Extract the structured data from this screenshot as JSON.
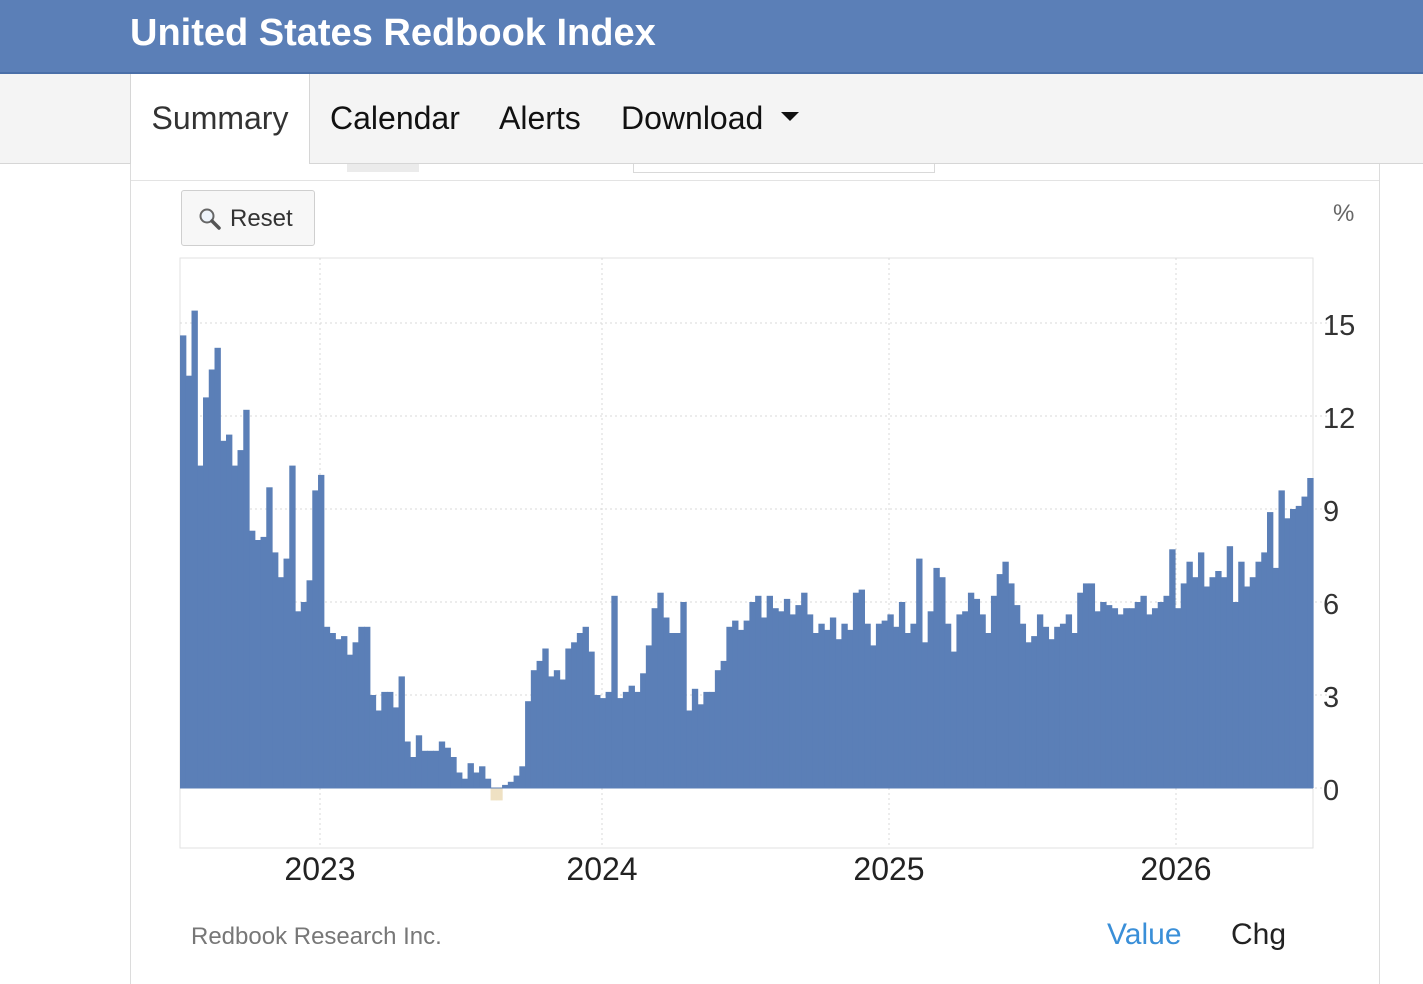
{
  "header": {
    "title": "United States Redbook Index"
  },
  "tabs": [
    {
      "label": "Summary",
      "active": true
    },
    {
      "label": "Calendar",
      "active": false
    },
    {
      "label": "Alerts",
      "active": false
    },
    {
      "label": "Download",
      "active": false,
      "dropdown": true
    }
  ],
  "toolbar": {
    "reset_label": "Reset",
    "reset_icon": "magnifier-icon"
  },
  "colors": {
    "header_bg": "#5b7fb7",
    "bar": "#5b7fb7",
    "negative_bar": "#efe1c3",
    "active_view": "#3a8fd8"
  },
  "footer": {
    "source": "Redbook Research Inc.",
    "view_options": [
      {
        "label": "Value",
        "active": true
      },
      {
        "label": "Chg",
        "active": false
      }
    ]
  },
  "chart_data": {
    "type": "bar",
    "unit": "%",
    "y_ticks": [
      "15",
      "12",
      "9",
      "6",
      "3",
      "0"
    ],
    "x_ticks": [
      "2023",
      "2024",
      "2025",
      "2026"
    ],
    "ylim": [
      -2,
      17
    ],
    "grid": true,
    "series": [
      {
        "values": [
          14.6,
          13.3,
          15.4,
          10.4,
          12.6,
          13.5,
          14.2,
          11.2,
          11.4,
          10.4,
          10.9,
          12.2,
          8.3,
          8.0,
          8.1,
          9.7,
          7.6,
          6.8,
          7.4,
          10.4,
          5.7,
          6.0,
          6.7,
          9.6,
          10.1,
          5.2,
          5.0,
          4.8,
          4.9,
          4.3,
          4.7,
          5.2,
          5.2,
          3.0,
          2.5,
          3.1,
          3.1,
          2.6,
          3.6,
          1.5,
          1.0,
          1.7,
          1.2,
          1.2,
          1.2,
          1.5,
          1.3,
          1.0,
          0.5,
          0.3,
          0.8,
          0.5,
          0.7,
          0.3,
          -0.4,
          -0.4,
          0.1,
          0.2,
          0.4,
          0.7,
          2.8,
          3.8,
          4.1,
          4.5,
          3.6,
          3.8,
          3.5,
          4.5,
          4.7,
          5.0,
          5.2,
          4.4,
          3.0,
          2.9,
          3.1,
          6.2,
          2.9,
          3.1,
          3.3,
          3.1,
          3.7,
          4.6,
          5.8,
          6.3,
          5.5,
          5.0,
          5.0,
          6.0,
          2.5,
          3.2,
          2.7,
          3.1,
          3.1,
          3.8,
          4.1,
          5.2,
          5.4,
          5.1,
          5.4,
          6.0,
          6.2,
          5.5,
          6.2,
          5.8,
          5.7,
          6.1,
          5.6,
          5.9,
          6.3,
          5.6,
          5.0,
          5.3,
          5.1,
          5.5,
          4.8,
          5.3,
          5.1,
          6.3,
          6.4,
          5.3,
          4.6,
          5.3,
          5.4,
          5.6,
          5.2,
          6.0,
          5.0,
          5.3,
          7.4,
          4.7,
          5.7,
          7.1,
          6.8,
          5.3,
          4.4,
          5.6,
          5.7,
          6.3,
          6.1,
          5.6,
          5.0,
          6.2,
          6.9,
          7.3,
          6.6,
          5.9,
          5.3,
          4.7,
          4.9,
          5.6,
          5.2,
          4.8,
          5.2,
          5.3,
          5.6,
          5.0,
          6.3,
          6.6,
          6.6,
          5.7,
          6.0,
          5.9,
          5.8,
          5.6,
          5.8,
          5.8,
          6.0,
          6.2,
          5.6,
          5.8,
          6.0,
          6.2,
          7.7,
          5.8,
          6.6,
          7.3,
          6.8,
          7.6,
          6.5,
          6.8,
          7.0,
          6.8,
          7.8,
          6.0,
          7.3,
          6.5,
          6.8,
          7.3,
          7.6,
          8.9,
          7.1,
          9.6,
          8.7,
          9.0,
          9.1,
          9.4,
          10.0
        ]
      }
    ]
  }
}
